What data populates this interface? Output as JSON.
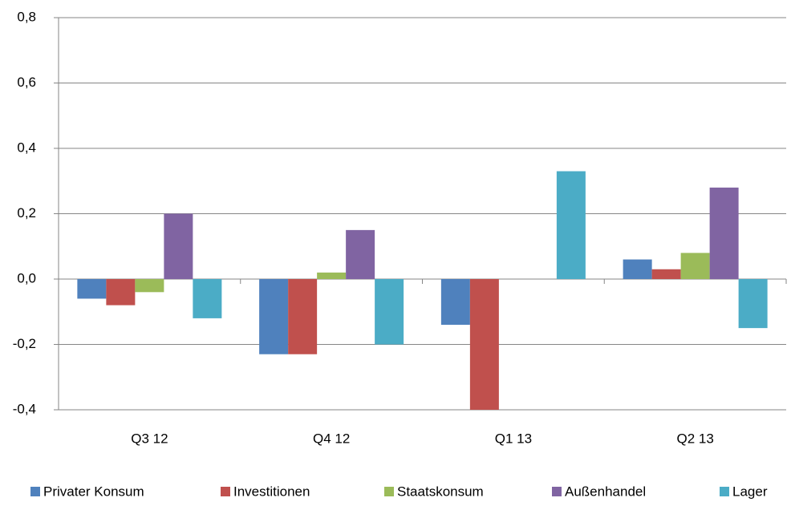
{
  "chart_data": {
    "type": "bar",
    "categories": [
      "Q3 12",
      "Q4 12",
      "Q1 13",
      "Q2 13"
    ],
    "series": [
      {
        "name": "Privater Konsum",
        "color": "#4f81bd",
        "values": [
          -0.06,
          -0.23,
          -0.14,
          0.06
        ]
      },
      {
        "name": "Investitionen",
        "color": "#c0504d",
        "values": [
          -0.08,
          -0.23,
          -0.4,
          0.03
        ]
      },
      {
        "name": "Staatskonsum",
        "color": "#9bbb59",
        "values": [
          -0.04,
          0.02,
          0,
          0.08
        ]
      },
      {
        "name": "Außenhandel",
        "color": "#8064a2",
        "values": [
          0.2,
          0.15,
          0,
          0.28
        ]
      },
      {
        "name": "Lager",
        "color": "#4bacc6",
        "values": [
          -0.12,
          -0.2,
          0.33,
          -0.15
        ]
      }
    ],
    "ylim": [
      -0.4,
      0.8
    ],
    "yticks": [
      {
        "value": -0.4,
        "label": "-0,4"
      },
      {
        "value": -0.2,
        "label": "-0,2"
      },
      {
        "value": 0,
        "label": "0,0"
      },
      {
        "value": 0.2,
        "label": "0,2"
      },
      {
        "value": 0.4,
        "label": "0,4"
      },
      {
        "value": 0.6,
        "label": "0,6"
      },
      {
        "value": 0.8,
        "label": "0,8"
      }
    ],
    "grid": true,
    "legend": "bottom"
  }
}
